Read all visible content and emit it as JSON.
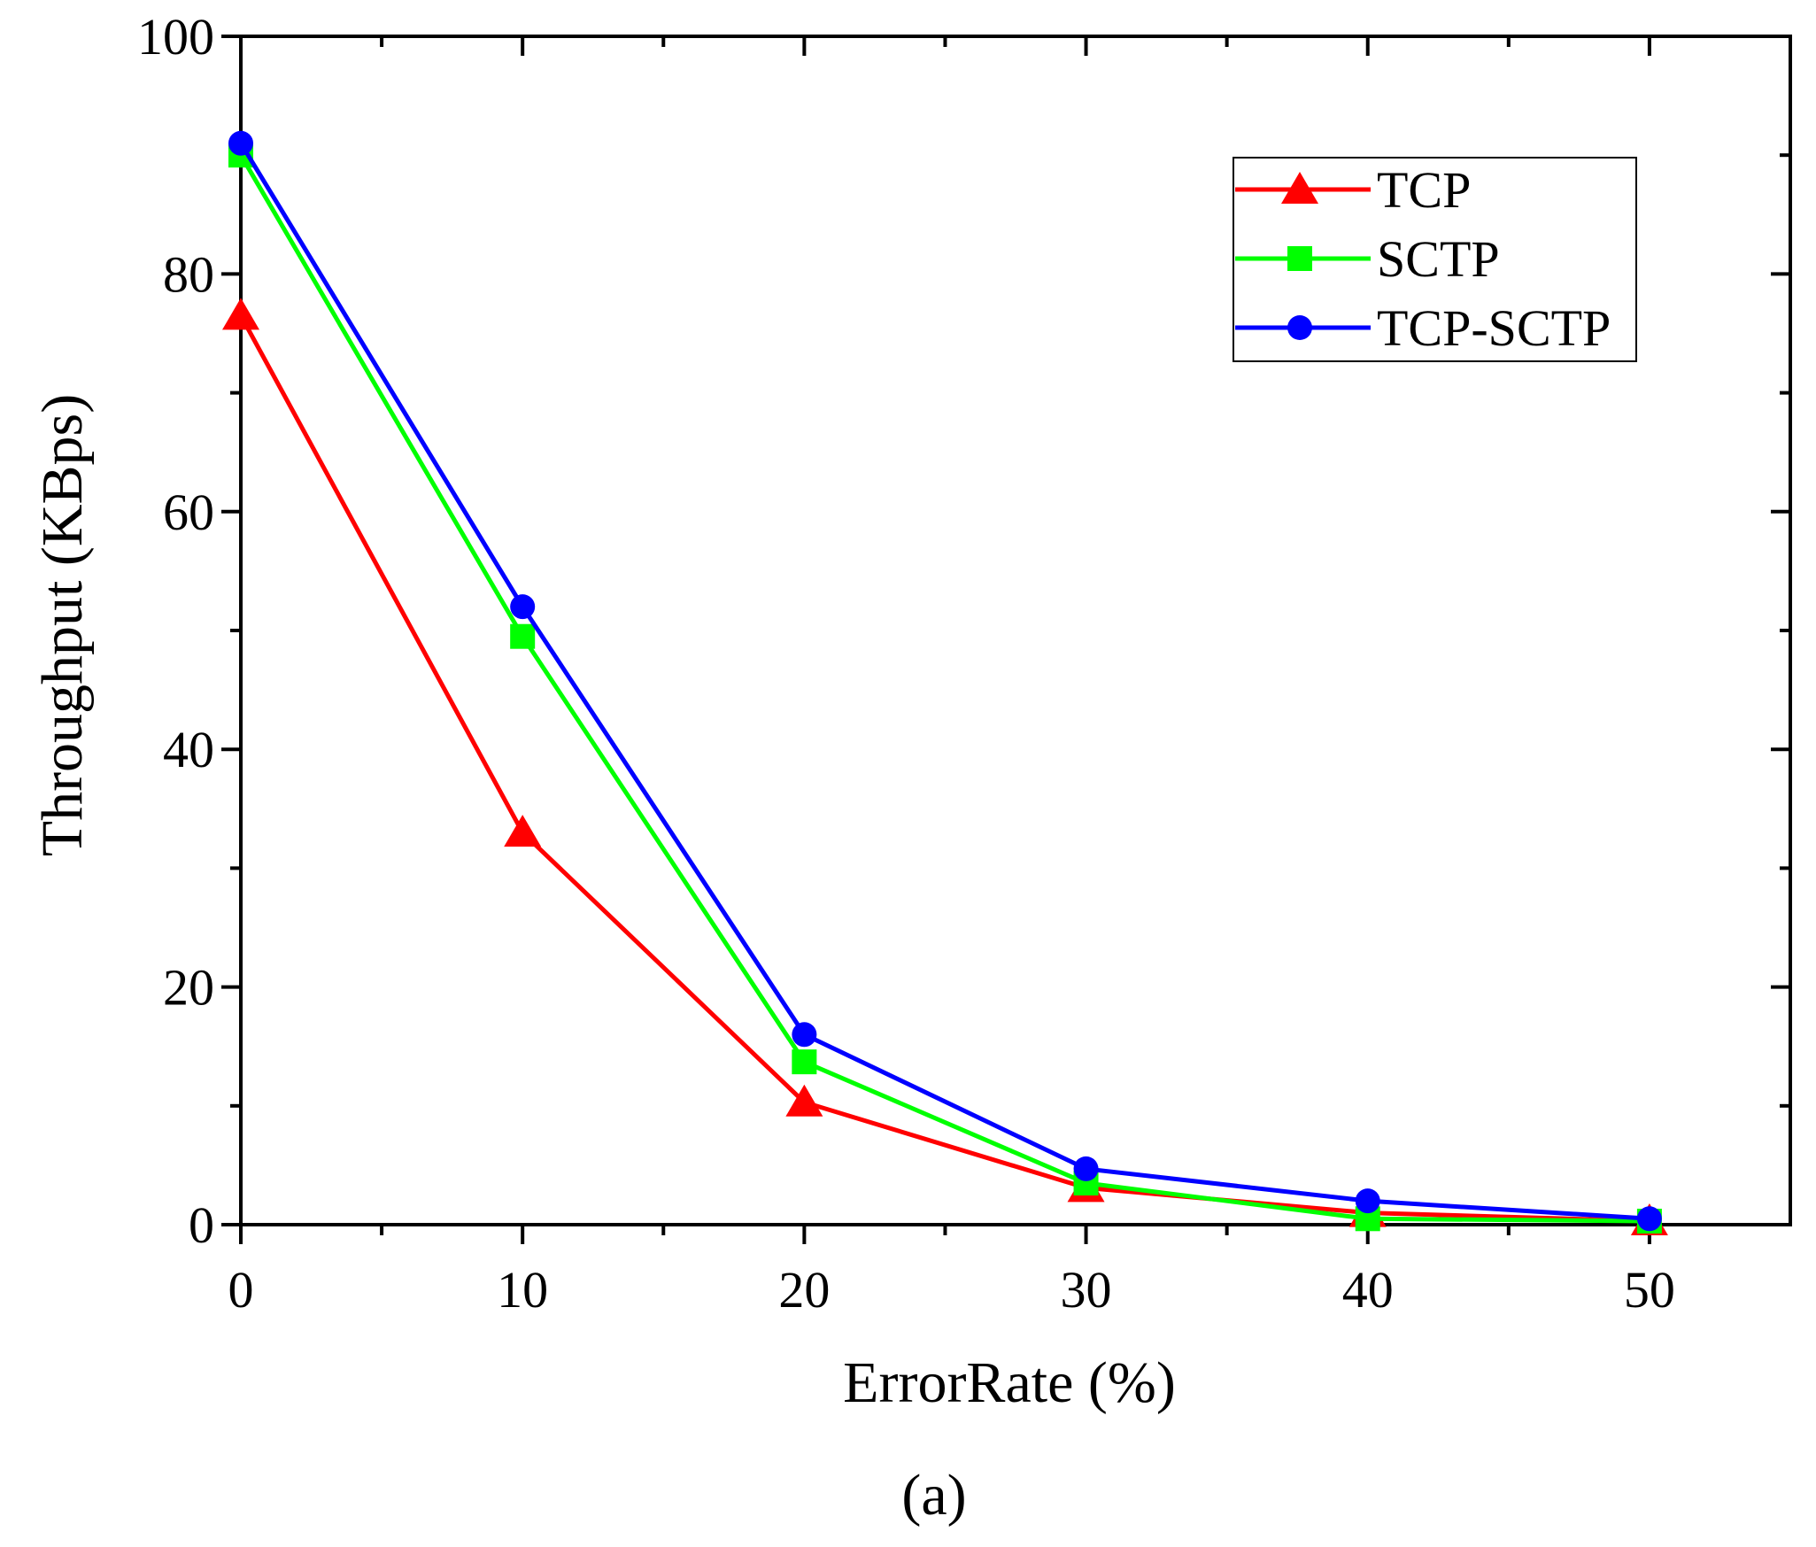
{
  "chart_data": {
    "type": "line",
    "title": "",
    "xlabel": "ErrorRate (%)",
    "ylabel": "Throughput (KBps)",
    "caption": "(a)",
    "xlim": [
      0,
      55
    ],
    "ylim": [
      0,
      100
    ],
    "xticks": [
      0,
      10,
      20,
      30,
      40,
      50
    ],
    "xtick_labels": [
      "0",
      "10",
      "20",
      "30",
      "40",
      "50"
    ],
    "yticks": [
      0,
      20,
      40,
      60,
      80,
      100
    ],
    "ytick_labels": [
      "0",
      "20",
      "40",
      "60",
      "80",
      "100"
    ],
    "x_minor_step": 5,
    "y_minor_step": 10,
    "grid": false,
    "legend_position": "top-right",
    "x": [
      0,
      10,
      20,
      30,
      40,
      50
    ],
    "series": [
      {
        "name": "TCP",
        "color": "#ff0000",
        "marker": "triangle",
        "values": [
          76.5,
          33,
          10.3,
          3.1,
          1.0,
          0.3
        ]
      },
      {
        "name": "SCTP",
        "color": "#00ff00",
        "marker": "square",
        "values": [
          90,
          49.5,
          13.7,
          3.5,
          0.5,
          0.3
        ]
      },
      {
        "name": "TCP-SCTP",
        "color": "#0000ff",
        "marker": "circle",
        "values": [
          91,
          52,
          16,
          4.7,
          2.0,
          0.5
        ]
      }
    ]
  }
}
